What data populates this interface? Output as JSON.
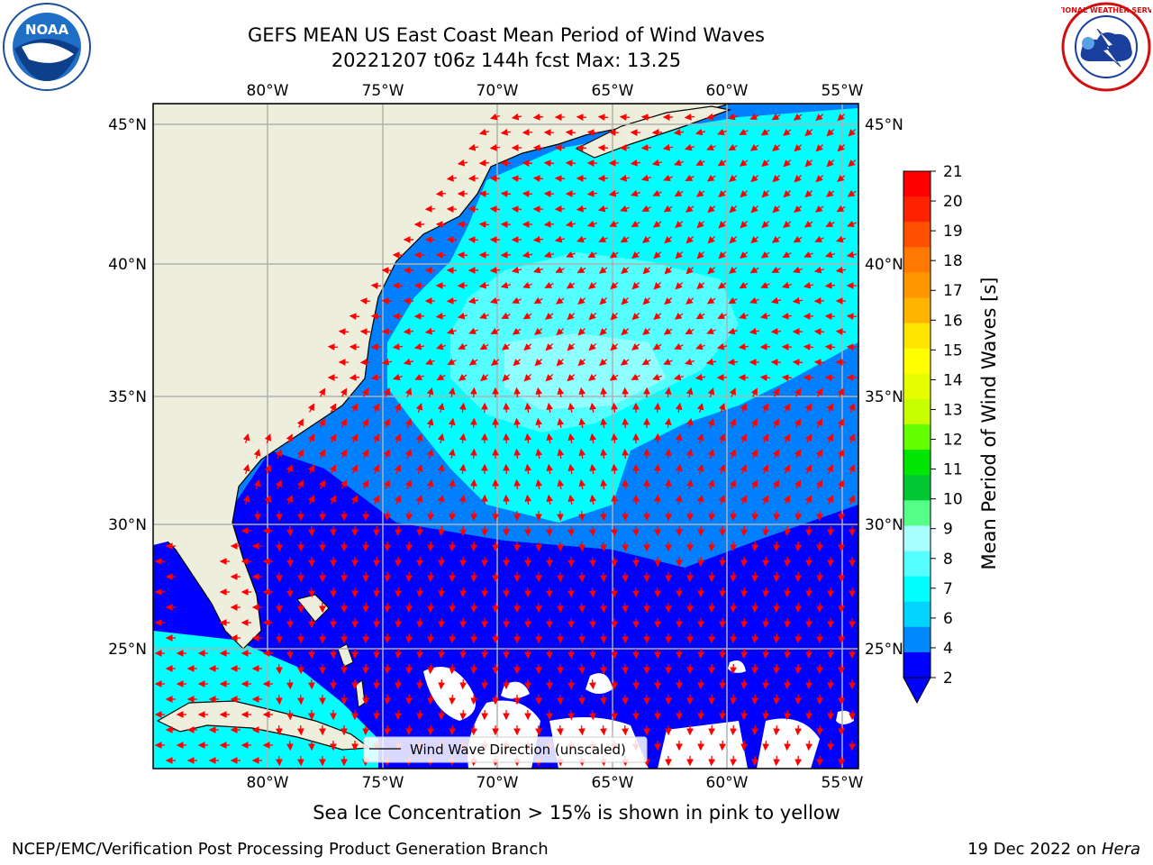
{
  "header": {
    "title_line1": "GEFS MEAN US East Coast Mean Period of Wind Waves",
    "title_line2": "20221207 t06z 144h fcst   Max: 13.25"
  },
  "logos": {
    "left": {
      "name": "noaa-logo",
      "text": "NOAA"
    },
    "right": {
      "name": "nws-logo",
      "text": "NATIONAL WEATHER SERVICE"
    }
  },
  "map": {
    "lon_ticks": [
      "80°W",
      "75°W",
      "70°W",
      "65°W",
      "60°W",
      "55°W"
    ],
    "lat_ticks": [
      "45°N",
      "40°N",
      "35°N",
      "30°N",
      "25°N"
    ],
    "legend_label": "Wind Wave Direction (unscaled)",
    "arrow_color": "#ff0000",
    "land_color": "#eeeedd"
  },
  "colorbar": {
    "label": "Mean Period of Wind Waves [s]",
    "ticks": [
      "21",
      "20",
      "19",
      "18",
      "17",
      "16",
      "15",
      "14",
      "13",
      "12",
      "11",
      "10",
      "9",
      "8",
      "7",
      "6",
      "4",
      "2"
    ],
    "colors": [
      "#ff0000",
      "#ff2200",
      "#ff5000",
      "#ff7800",
      "#ff9600",
      "#ffb400",
      "#ffe600",
      "#ffff00",
      "#e6ff00",
      "#c8ff00",
      "#64ff00",
      "#00e600",
      "#00c832",
      "#55ff88",
      "#aaffff",
      "#55ffff",
      "#00ffff",
      "#00d4ff",
      "#0088ff",
      "#0000ff"
    ],
    "extend_color": "#0000ff"
  },
  "footer": {
    "note": "Sea Ice Concentration > 15% is shown in pink to yellow",
    "branch": "NCEP/EMC/Verification Post Processing Product Generation Branch",
    "date": "19 Dec 2022 on ",
    "machine": "Hera"
  }
}
